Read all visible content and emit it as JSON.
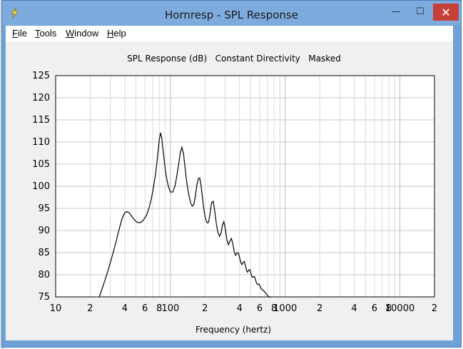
{
  "window": {
    "title": "Hornresp - SPL Response",
    "minimize_glyph": "—",
    "maximize_glyph": "☐",
    "close_glyph": "✕",
    "icon": "lightning-icon",
    "accent": "#7eabde",
    "close_color": "#c7413b"
  },
  "menu": {
    "items": [
      {
        "label": "File",
        "mnemonic": "F",
        "rest": "ile"
      },
      {
        "label": "Tools",
        "mnemonic": "T",
        "rest": "ools"
      },
      {
        "label": "Window",
        "mnemonic": "W",
        "rest": "indow"
      },
      {
        "label": "Help",
        "mnemonic": "H",
        "rest": "elp"
      }
    ]
  },
  "chart_data": {
    "type": "line",
    "title": "SPL Response (dB)   Constant Directivity   Masked",
    "xlabel": "Frequency (hertz)",
    "ylabel": "",
    "xscale": "log",
    "xlim": [
      10,
      20000
    ],
    "ylim": [
      75,
      125
    ],
    "grid": true,
    "y_ticks": [
      125,
      120,
      115,
      110,
      105,
      100,
      95,
      90,
      85,
      80,
      75
    ],
    "x_tick_labels": [
      {
        "value": 10,
        "label": "10"
      },
      {
        "value": 20,
        "label": "2"
      },
      {
        "value": 40,
        "label": "4"
      },
      {
        "value": 60,
        "label": "6"
      },
      {
        "value": 80,
        "label": "8"
      },
      {
        "value": 100,
        "label": "100"
      },
      {
        "value": 200,
        "label": "2"
      },
      {
        "value": 400,
        "label": "4"
      },
      {
        "value": 600,
        "label": "6"
      },
      {
        "value": 800,
        "label": "8"
      },
      {
        "value": 1000,
        "label": "1000"
      },
      {
        "value": 2000,
        "label": "2"
      },
      {
        "value": 4000,
        "label": "4"
      },
      {
        "value": 6000,
        "label": "6"
      },
      {
        "value": 8000,
        "label": "8"
      },
      {
        "value": 10000,
        "label": "10000"
      },
      {
        "value": 20000,
        "label": "2"
      }
    ],
    "series": [
      {
        "color": "#000000",
        "x": [
          24,
          26,
          28,
          30,
          32,
          34,
          36,
          38,
          40,
          42,
          44,
          46,
          48,
          50,
          52,
          55,
          58,
          62,
          65,
          68,
          71,
          74,
          77,
          80,
          82,
          84,
          86,
          88,
          90,
          93,
          96,
          100,
          105,
          110,
          114,
          118,
          122,
          126,
          130,
          134,
          138,
          142,
          146,
          150,
          155,
          160,
          165,
          170,
          175,
          180,
          185,
          190,
          195,
          200,
          205,
          210,
          215,
          220,
          228,
          236,
          244,
          252,
          260,
          268,
          276,
          284,
          292,
          300,
          310,
          320,
          330,
          340,
          350,
          360,
          370,
          380,
          390,
          400,
          410,
          420,
          430,
          440,
          450,
          460,
          470,
          480,
          490,
          500,
          510,
          520,
          530,
          540,
          550,
          560,
          570,
          580,
          590,
          600,
          615,
          630,
          645,
          660,
          680,
          700,
          720,
          740,
          760
        ],
        "y": [
          75.0,
          77.6,
          80.2,
          82.8,
          85.4,
          88.0,
          90.6,
          92.8,
          94.0,
          94.3,
          93.9,
          93.2,
          92.6,
          92.1,
          91.8,
          91.8,
          92.3,
          93.5,
          95.0,
          97.0,
          99.6,
          102.5,
          106.3,
          110.5,
          112.1,
          111.0,
          108.5,
          106.2,
          104.0,
          101.6,
          100.0,
          98.7,
          98.7,
          100.2,
          102.5,
          105.0,
          107.6,
          108.8,
          107.4,
          104.4,
          101.4,
          99.3,
          97.6,
          96.3,
          95.5,
          95.9,
          97.7,
          100.3,
          101.7,
          101.9,
          100.1,
          97.6,
          95.1,
          93.2,
          92.2,
          91.7,
          91.9,
          93.3,
          96.2,
          96.6,
          94.2,
          91.3,
          89.5,
          88.7,
          89.4,
          91.2,
          92.0,
          90.6,
          88.0,
          86.8,
          87.6,
          88.2,
          87.0,
          85.2,
          84.4,
          84.9,
          85.0,
          84.0,
          82.8,
          82.3,
          82.8,
          83.0,
          82.2,
          81.0,
          80.6,
          81.0,
          81.2,
          80.6,
          79.7,
          79.4,
          79.6,
          79.6,
          79.0,
          78.3,
          77.9,
          77.8,
          77.9,
          77.6,
          77.0,
          76.6,
          76.5,
          76.2,
          75.8,
          75.4,
          75.0,
          75.0,
          75.0
        ]
      }
    ]
  }
}
